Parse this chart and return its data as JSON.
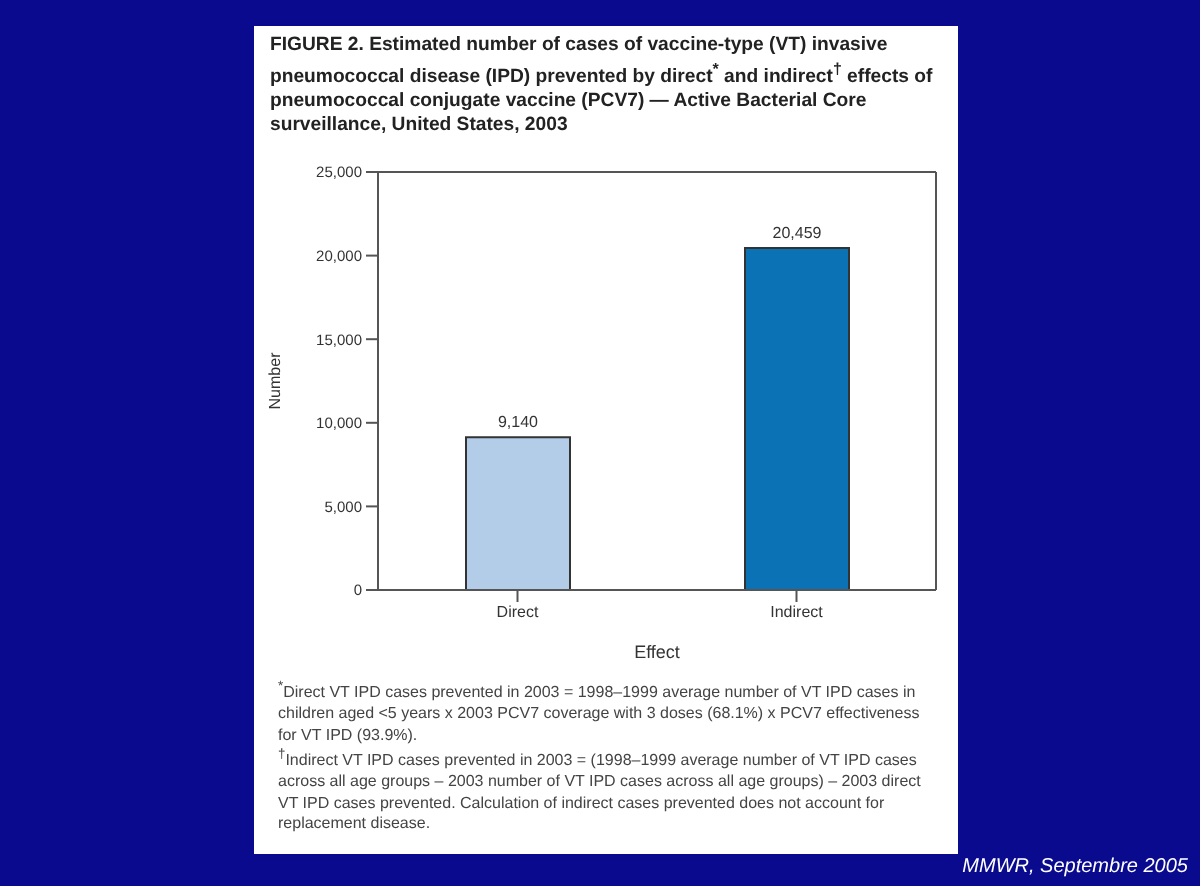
{
  "chart_data": {
    "type": "bar",
    "title": "FIGURE 2. Estimated number of cases of vaccine-type (VT) invasive pneumococcal disease (IPD) prevented by direct$^{*}$ and indirect$^{†}$ effects of pneumococcal conjugate vaccine (PCV7) — Active Bacterial Core surveillance, United States, 2003",
    "xlabel": "Effect",
    "ylabel": "Number",
    "categories": [
      "Direct",
      "Indirect"
    ],
    "values": [
      9140,
      20459
    ],
    "colors": [
      "#b3cde9",
      "#0b72b5"
    ],
    "value_labels": [
      "9,140",
      "20,459"
    ],
    "ylim": [
      0,
      25000
    ],
    "yticks": [
      {
        "value": 0,
        "label": "0"
      },
      {
        "value": 5000,
        "label": "5,000"
      },
      {
        "value": 10000,
        "label": "10,000"
      },
      {
        "value": 15000,
        "label": "15,000"
      },
      {
        "value": 20000,
        "label": "20,000"
      },
      {
        "value": 25000,
        "label": "25,000"
      }
    ],
    "grid": false,
    "legend": false,
    "annotations": [
      "$^{*}$Direct VT IPD cases prevented in 2003 = 1998–1999 average number of VT IPD cases in children aged <5 years x 2003 PCV7 coverage with 3 doses (68.1%) x PCV7 effectiveness for VT IPD (93.9%).",
      "$^{†}$Indirect VT IPD cases prevented in 2003 = (1998–1999 average number of VT IPD cases across all age groups – 2003 number of VT IPD cases across all age groups) – 2003 direct VT IPD cases prevented. Calculation of indirect cases prevented does not account for replacement disease.",
      "MMWR, Septembre 2005"
    ]
  }
}
